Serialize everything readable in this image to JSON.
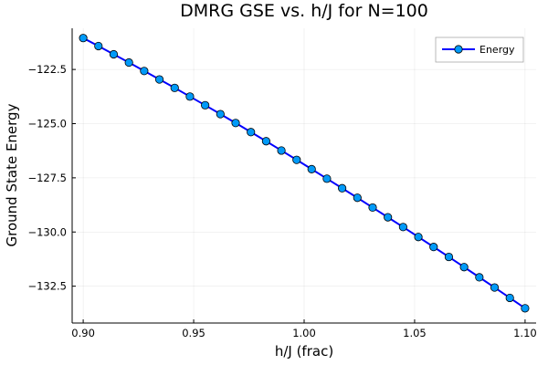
{
  "chart_data": {
    "type": "line",
    "title": "DMRG GSE vs. h/J for N=100",
    "xlabel": "h/J (frac)",
    "ylabel": "Ground State Energy",
    "xlim": [
      0.895,
      1.105
    ],
    "ylim": [
      -134.2,
      -120.6
    ],
    "xticks": [
      0.9,
      0.95,
      1.0,
      1.05,
      1.1
    ],
    "xtick_labels": [
      "0.90",
      "0.95",
      "1.00",
      "1.05",
      "1.10"
    ],
    "yticks": [
      -122.5,
      -125.0,
      -127.5,
      -130.0,
      -132.5
    ],
    "ytick_labels": [
      "−122.5",
      "−125.0",
      "−127.5",
      "−130.0",
      "−132.5"
    ],
    "grid": true,
    "legend_position": "top-right",
    "line_color": "#0000ff",
    "marker_color": "#009af9",
    "series": [
      {
        "name": "Energy",
        "x": [
          0.9,
          0.9069,
          0.9138,
          0.9207,
          0.9276,
          0.9345,
          0.9414,
          0.9483,
          0.9552,
          0.9621,
          0.969,
          0.9759,
          0.9828,
          0.9897,
          0.9966,
          1.0034,
          1.0103,
          1.0172,
          1.0241,
          1.031,
          1.0379,
          1.0448,
          1.0517,
          1.0586,
          1.0655,
          1.0724,
          1.0793,
          1.0862,
          1.0931,
          1.1
        ],
        "y": [
          -121.05,
          -121.42,
          -121.8,
          -122.18,
          -122.57,
          -122.96,
          -123.35,
          -123.75,
          -124.15,
          -124.56,
          -124.97,
          -125.39,
          -125.81,
          -126.24,
          -126.67,
          -127.1,
          -127.54,
          -127.98,
          -128.42,
          -128.87,
          -129.32,
          -129.77,
          -130.23,
          -130.69,
          -131.15,
          -131.62,
          -132.09,
          -132.56,
          -133.04,
          -133.52
        ]
      }
    ]
  }
}
